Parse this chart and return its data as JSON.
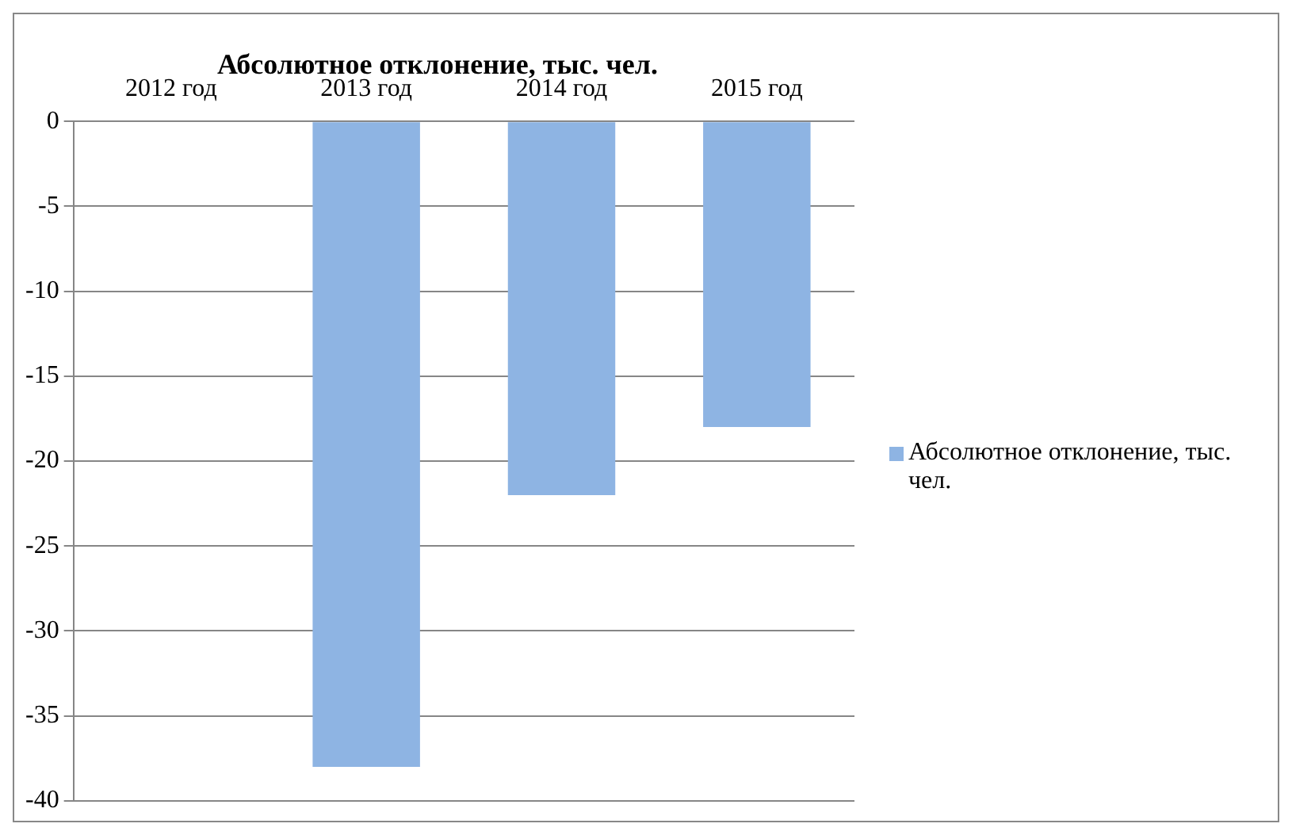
{
  "chart_data": {
    "type": "bar",
    "title": "Абсолютное отклонение, тыс. чел.",
    "categories": [
      "2012 год",
      "2013 год",
      "2014 год",
      "2015 год"
    ],
    "series": [
      {
        "name": "Абсолютное отклонение, тыс. чел.",
        "color": "#8eb4e3",
        "values": [
          0,
          -38,
          -22,
          -18
        ]
      }
    ],
    "ylim": [
      -40,
      0
    ],
    "yticks": [
      0,
      -5,
      -10,
      -15,
      -20,
      -25,
      -30,
      -35,
      -40
    ],
    "grid": "y",
    "legend": "right"
  }
}
